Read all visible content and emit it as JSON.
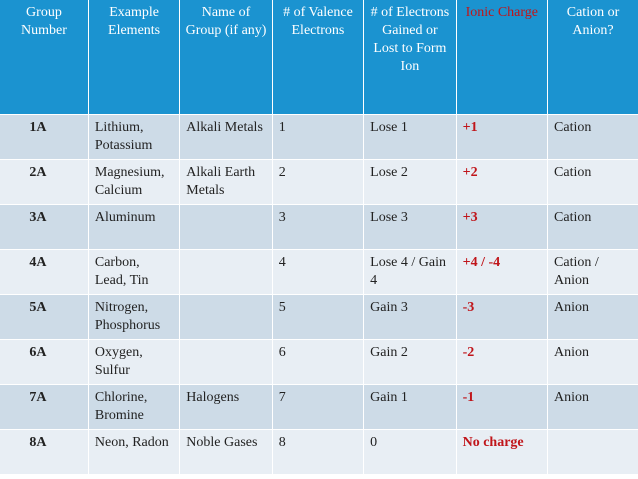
{
  "table": {
    "headers": [
      "Group Number",
      "Example Elements",
      "Name of Group (if any)",
      "# of Valence Electrons",
      "# of Electrons Gained or Lost to Form Ion",
      "Ionic Charge",
      "Cation or Anion?"
    ],
    "rows": [
      [
        "1A",
        "Lithium, Potassium",
        "Alkali Metals",
        "1",
        "Lose 1",
        "+1",
        "Cation"
      ],
      [
        "2A",
        "Magnesium, Calcium",
        "Alkali Earth Metals",
        "2",
        "Lose 2",
        "+2",
        "Cation"
      ],
      [
        "3A",
        "Aluminum",
        "",
        "3",
        "Lose 3",
        "+3",
        "Cation"
      ],
      [
        "4A",
        "Carbon, Lead, Tin",
        "",
        "4",
        "Lose 4 / Gain 4",
        "+4 / -4",
        "Cation / Anion"
      ],
      [
        "5A",
        "Nitrogen, Phosphorus",
        "",
        "5",
        "Gain 3",
        "-3",
        "Anion"
      ],
      [
        "6A",
        "Oxygen, Sulfur",
        "",
        "6",
        "Gain 2",
        "-2",
        "Anion"
      ],
      [
        "7A",
        "Chlorine, Bromine",
        "Halogens",
        "7",
        "Gain 1",
        "-1",
        "Anion"
      ],
      [
        "8A",
        "Neon, Radon",
        "Noble Gases",
        "8",
        "0",
        "No charge",
        ""
      ]
    ]
  },
  "colors": {
    "header_bg": "#1b93d0",
    "row_odd": "#cddbe7",
    "row_even": "#e8eef4",
    "charge_red": "#c0151a"
  }
}
